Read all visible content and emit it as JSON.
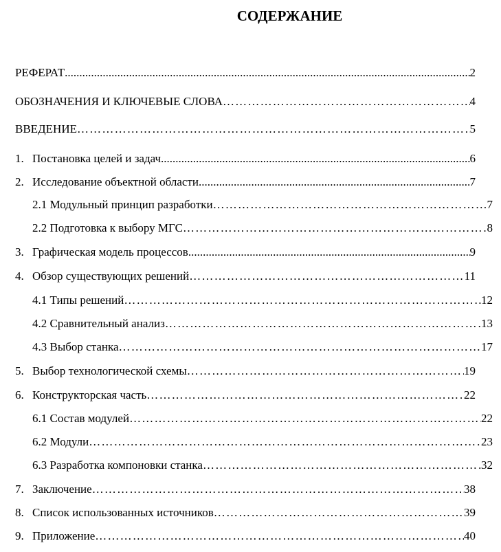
{
  "title": "СОДЕРЖАНИЕ",
  "entries": [
    {
      "num": "",
      "label": "РЕФЕРАТ ",
      "page": "2",
      "level": 0,
      "dots": "fine"
    },
    {
      "num": "",
      "label": "ОБОЗНАЧЕНИЯ И КЛЮЧЕВЫЕ СЛОВА",
      "page": "4",
      "level": 0,
      "dots": "wide"
    },
    {
      "num": "",
      "label": "ВВЕДЕНИЕ",
      "page": "5",
      "level": 0,
      "dots": "wide"
    },
    {
      "num": "1.",
      "label": "Постановка целей и задач ",
      "page": "6",
      "level": 1,
      "dots": "fine"
    },
    {
      "num": "2.",
      "label": "Исследование объектной области",
      "page": "7",
      "level": 1,
      "dots": "fine"
    },
    {
      "num": "",
      "label": "2.1 Модульный принцип разработки",
      "page": "7",
      "level": 2,
      "dots": "wide"
    },
    {
      "num": "",
      "label": "2.2 Подготовка к выбору МГС",
      "page": "8",
      "level": 2,
      "dots": "wide"
    },
    {
      "num": "3.",
      "label": "Графическая модель процессов",
      "page": "9",
      "level": 1,
      "dots": "fine"
    },
    {
      "num": "4.",
      "label": "Обзор существующих решений",
      "page": "11",
      "level": 1,
      "dots": "wide"
    },
    {
      "num": "",
      "label": "4.1 Типы решений",
      "page": "12",
      "level": 2,
      "dots": "wide"
    },
    {
      "num": "",
      "label": "4.2 Сравнительный анализ",
      "page": "13",
      "level": 2,
      "dots": "wide"
    },
    {
      "num": "",
      "label": "4.3 Выбор станка",
      "page": "17",
      "level": 2,
      "dots": "wide"
    },
    {
      "num": "5.",
      "label": "Выбор технологической схемы",
      "page": "19",
      "level": 1,
      "dots": "wide"
    },
    {
      "num": "6.",
      "label": "Конструкторская часть",
      "page": "22",
      "level": 1,
      "dots": "wide"
    },
    {
      "num": "",
      "label": "6.1 Состав модулей",
      "page": "22",
      "level": 2,
      "dots": "wide"
    },
    {
      "num": "",
      "label": "6.2 Модули",
      "page": "23",
      "level": 2,
      "dots": "wide"
    },
    {
      "num": "",
      "label": "6.3 Разработка компоновки станка",
      "page": "32",
      "level": 2,
      "dots": "wide"
    },
    {
      "num": "7.",
      "label": "Заключение",
      "page": "38",
      "level": 1,
      "dots": "wide"
    },
    {
      "num": "8.",
      "label": "Список использованных источников",
      "page": "39",
      "level": 1,
      "dots": "wide"
    },
    {
      "num": "9.",
      "label": "Приложение",
      "page": "40",
      "level": 1,
      "dots": "wide"
    }
  ]
}
